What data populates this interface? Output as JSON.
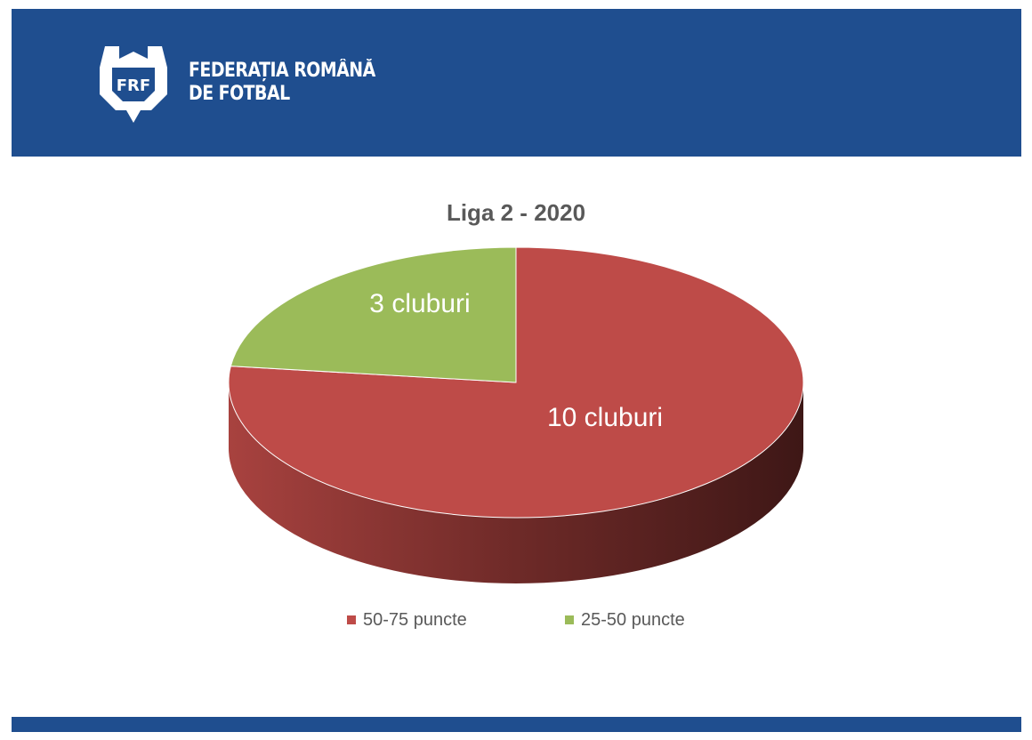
{
  "header": {
    "org_line1": "FEDERAȚIA ROMÂNĂ",
    "org_line2": "DE FOTBAL",
    "logo_text": "FRF",
    "brand_color": "#1f4e8f"
  },
  "chart_data": {
    "type": "pie",
    "title": "Liga 2 - 2020",
    "categories": [
      "50-75 puncte",
      "25-50 puncte"
    ],
    "values": [
      10,
      3
    ],
    "data_labels": [
      "10 cluburi",
      "3 cluburi"
    ],
    "colors": [
      "#be4b48",
      "#9bbb59"
    ],
    "legend": "bottom",
    "style": "3d"
  }
}
